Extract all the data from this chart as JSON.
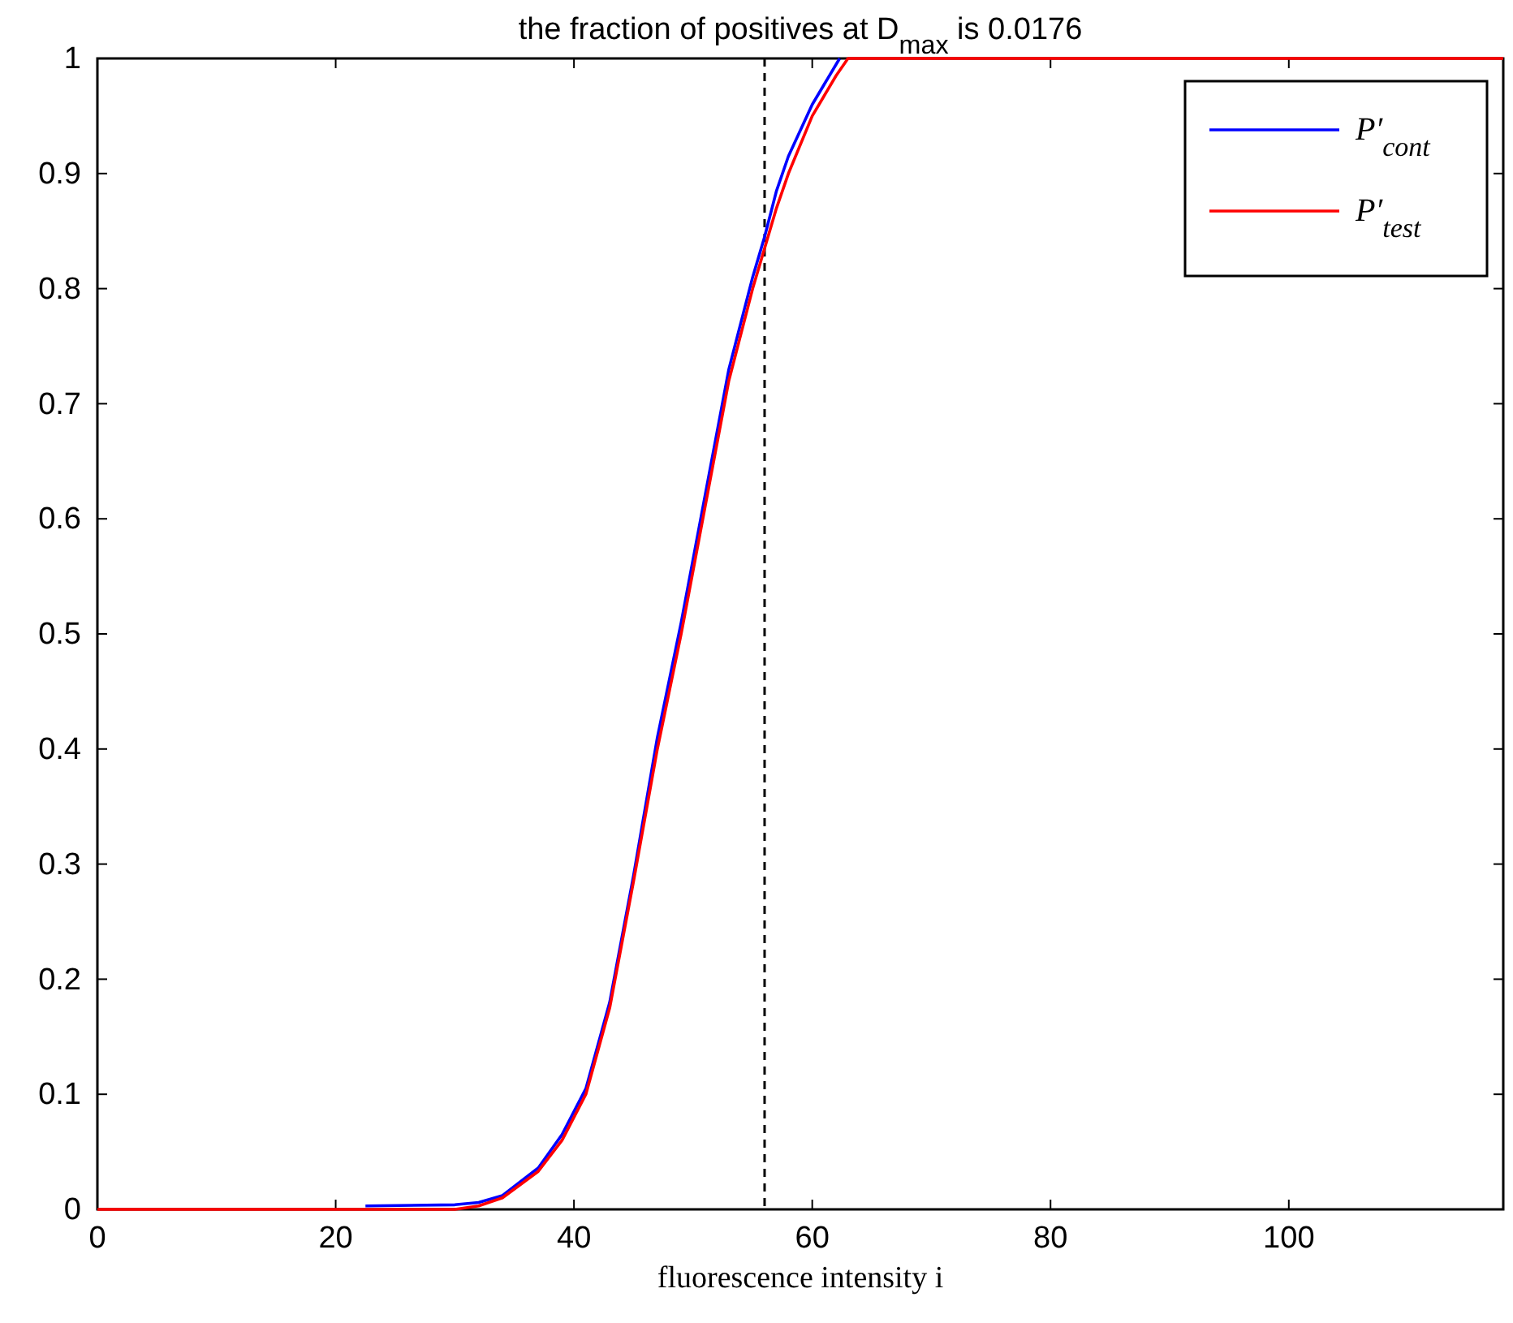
{
  "chart_data": {
    "type": "line",
    "title": "the fraction of positives at D$_{max}$ is 0.0176",
    "xlabel": "fluorescence intensity i",
    "x": [
      0,
      22.5,
      30,
      32,
      34,
      37,
      39,
      41,
      43,
      45,
      47,
      49,
      51,
      53,
      55,
      56,
      57,
      58,
      60,
      62,
      63,
      80,
      100,
      118
    ],
    "series": [
      {
        "name": "P′$_{cont}$",
        "color": "#0000ff",
        "x": [
          22.5,
          30,
          32,
          34,
          37,
          39,
          41,
          43,
          45,
          47,
          49,
          51,
          53,
          55,
          56,
          57,
          58,
          60,
          62.3
        ],
        "values": [
          0.003,
          0.004,
          0.006,
          0.012,
          0.036,
          0.065,
          0.105,
          0.18,
          0.29,
          0.41,
          0.51,
          0.62,
          0.73,
          0.81,
          0.845,
          0.885,
          0.915,
          0.96,
          1
        ]
      },
      {
        "name": "P′$_{test}$",
        "color": "#ff0000",
        "values": [
          0,
          0,
          0,
          0.003,
          0.01,
          0.033,
          0.06,
          0.1,
          0.175,
          0.285,
          0.4,
          0.5,
          0.61,
          0.72,
          0.8,
          0.835,
          0.87,
          0.9,
          0.95,
          0.985,
          1,
          1,
          1,
          1
        ]
      }
    ],
    "xlim": [
      0,
      118
    ],
    "xticks": [
      0,
      20,
      40,
      60,
      80,
      100
    ],
    "ylim": [
      0,
      1
    ],
    "yticks": [
      0,
      0.1,
      0.2,
      0.3,
      0.4,
      0.5,
      0.6,
      0.7,
      0.8,
      0.9,
      1
    ],
    "ref_lines": [
      {
        "axis": "x",
        "value": 56,
        "color": "#000000",
        "line_style": "dashed"
      }
    ],
    "legend": "top right",
    "grid": false
  }
}
